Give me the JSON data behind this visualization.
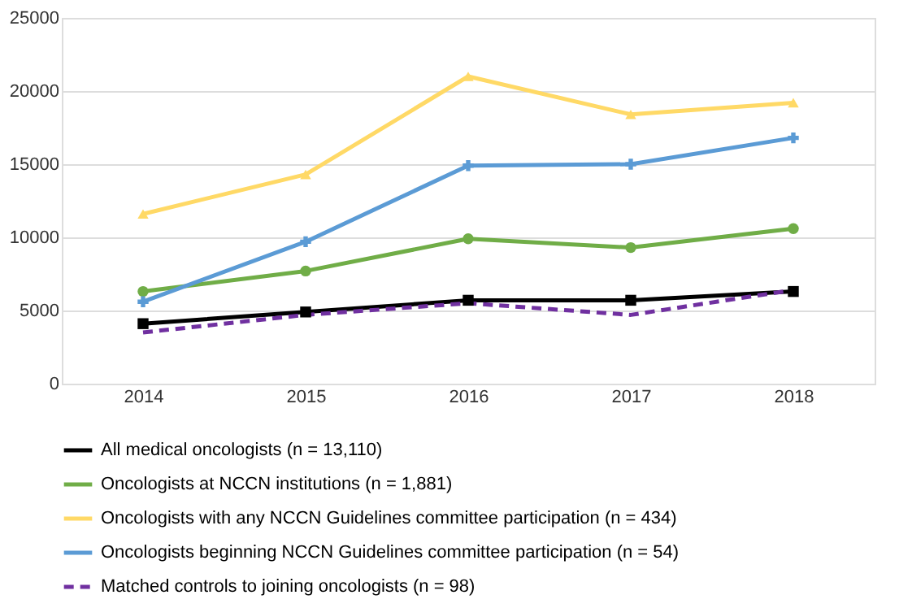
{
  "chart_data": {
    "type": "line",
    "categories": [
      "2014",
      "2015",
      "2016",
      "2017",
      "2018"
    ],
    "ylim": [
      0,
      25000
    ],
    "yticks": [
      0,
      5000,
      10000,
      15000,
      20000,
      25000
    ],
    "grid": "y",
    "legend": "bottom",
    "series": [
      {
        "name": "All medical oncologists (n = 13,110)",
        "color": "#000000",
        "marker": "square",
        "line_style": "solid",
        "values": [
          4100,
          4900,
          5700,
          5700,
          6300
        ]
      },
      {
        "name": "Oncologists at NCCN institutions (n = 1,881)",
        "color": "#70ad47",
        "marker": "circle",
        "line_style": "solid",
        "values": [
          6300,
          7700,
          9900,
          9300,
          10600
        ]
      },
      {
        "name": "Oncologists with any NCCN Guidelines committee participation (n = 434)",
        "color": "#ffd966",
        "marker": "triangle",
        "line_style": "solid",
        "values": [
          11600,
          14300,
          21000,
          18400,
          19200
        ]
      },
      {
        "name": "Oncologists beginning NCCN Guidelines committee participation (n = 54)",
        "color": "#5b9bd5",
        "marker": "cross",
        "line_style": "solid",
        "values": [
          5600,
          9700,
          14900,
          15000,
          16800
        ]
      },
      {
        "name": "Matched controls to joining oncologists (n = 98)",
        "color": "#7030a0",
        "marker": "none",
        "line_style": "dashed",
        "values": [
          3500,
          4700,
          5500,
          4700,
          6400
        ]
      }
    ]
  }
}
